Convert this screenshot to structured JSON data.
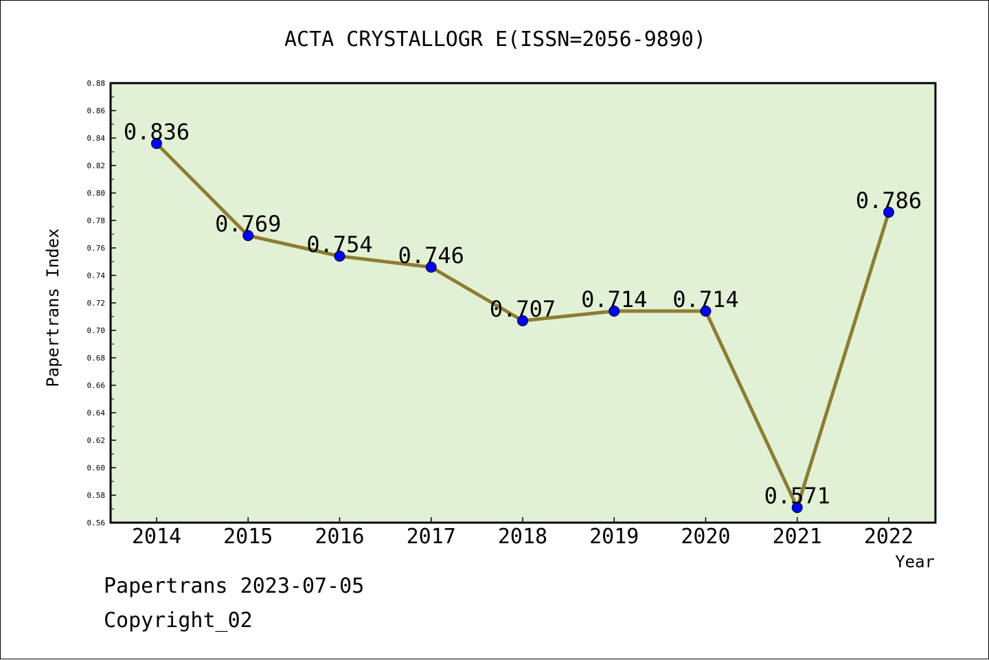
{
  "chart_data": {
    "type": "line",
    "title": "ACTA CRYSTALLOGR E(ISSN=2056-9890)",
    "xlabel": "Year",
    "ylabel": "Papertrans Index",
    "categories": [
      "2014",
      "2015",
      "2016",
      "2017",
      "2018",
      "2019",
      "2020",
      "2021",
      "2022"
    ],
    "values": [
      0.836,
      0.769,
      0.754,
      0.746,
      0.707,
      0.714,
      0.714,
      0.571,
      0.786
    ],
    "data_labels": [
      "0.836",
      "0.769",
      "0.754",
      "0.746",
      "0.707",
      "0.714",
      "0.714",
      "0.571",
      "0.786"
    ],
    "ylim": [
      0.56,
      0.88
    ],
    "yticks": [
      "0.56",
      "0.58",
      "0.60",
      "0.62",
      "0.64",
      "0.66",
      "0.68",
      "0.70",
      "0.72",
      "0.74",
      "0.76",
      "0.78",
      "0.80",
      "0.82",
      "0.84",
      "0.86",
      "0.88"
    ],
    "grid": false,
    "legend": "none",
    "colors": {
      "plot_background": "#e2f0d6",
      "line": "#8b7d32",
      "marker": "#0000ff"
    }
  },
  "footer": {
    "line1": "Papertrans 2023-07-05",
    "line2": "Copyright_02"
  }
}
